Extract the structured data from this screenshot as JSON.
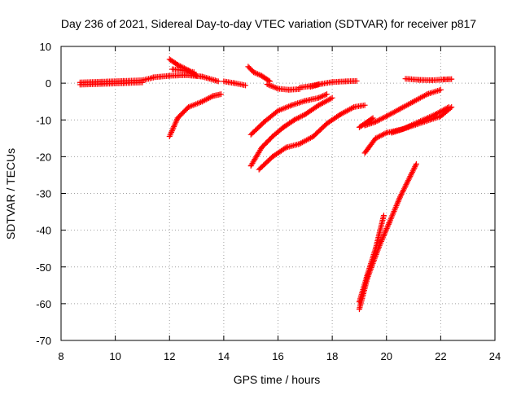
{
  "chart_data": {
    "type": "scatter",
    "title": "Day 236 of 2021, Sidereal Day-to-day VTEC variation (SDTVAR) for receiver p817",
    "xlabel": "GPS time / hours",
    "ylabel": "SDTVAR / TECUs",
    "xlim": [
      8,
      24
    ],
    "ylim": [
      -70,
      10
    ],
    "xticks": [
      8,
      10,
      12,
      14,
      16,
      18,
      20,
      22,
      24
    ],
    "yticks": [
      10,
      0,
      -10,
      -20,
      -30,
      -40,
      -50,
      -60,
      -70
    ],
    "xtick_labels": [
      "8",
      "10",
      "12",
      "14",
      "16",
      "18",
      "20",
      "22",
      "24"
    ],
    "ytick_labels": [
      "10",
      "0",
      "-10",
      "-20",
      "-30",
      "-40",
      "-50",
      "-60",
      "-70"
    ],
    "grid": true,
    "marker": "+",
    "color": "#ff0000",
    "tracks": [
      {
        "x": [
          8.7,
          9.5,
          10.3,
          11.0,
          11.4
        ],
        "y": [
          0.2,
          0.4,
          0.6,
          0.8,
          1.5
        ]
      },
      {
        "x": [
          8.7,
          9.5,
          10.3,
          11.0
        ],
        "y": [
          -0.4,
          -0.2,
          0.0,
          0.2
        ]
      },
      {
        "x": [
          11.4,
          12.0,
          12.6,
          13.2,
          13.8
        ],
        "y": [
          1.6,
          2.0,
          2.2,
          1.8,
          0.5
        ]
      },
      {
        "x": [
          12.0,
          12.3,
          12.7,
          13.0
        ],
        "y": [
          6.5,
          5.0,
          3.5,
          2.0
        ]
      },
      {
        "x": [
          12.1,
          12.5,
          12.9
        ],
        "y": [
          3.8,
          3.5,
          3.0
        ]
      },
      {
        "x": [
          12.0,
          12.3,
          12.7,
          13.2,
          13.6,
          13.9
        ],
        "y": [
          -14.5,
          -9.5,
          -6.5,
          -5.0,
          -3.5,
          -3.0
        ]
      },
      {
        "x": [
          14.0,
          14.4,
          14.8
        ],
        "y": [
          0.5,
          0.0,
          -0.6
        ]
      },
      {
        "x": [
          14.9,
          15.1,
          15.4,
          15.7
        ],
        "y": [
          4.5,
          3.0,
          2.0,
          0.5
        ]
      },
      {
        "x": [
          15.6,
          16.0,
          16.4,
          16.8
        ],
        "y": [
          -0.3,
          -1.5,
          -1.8,
          -1.6
        ]
      },
      {
        "x": [
          16.8,
          17.2,
          17.5
        ],
        "y": [
          -1.2,
          -0.8,
          -0.3
        ]
      },
      {
        "x": [
          17.2,
          17.6,
          18.0,
          18.5,
          18.9
        ],
        "y": [
          -1.0,
          -0.2,
          0.3,
          0.5,
          0.6
        ]
      },
      {
        "x": [
          15.0,
          15.5,
          16.0,
          16.5,
          17.0,
          17.5,
          17.8
        ],
        "y": [
          -14.0,
          -10.5,
          -7.5,
          -6.0,
          -4.8,
          -4.0,
          -3.0
        ]
      },
      {
        "x": [
          15.0,
          15.4,
          15.8,
          16.2,
          16.6,
          17.0,
          17.5,
          18.0
        ],
        "y": [
          -22.5,
          -17.5,
          -14.5,
          -12.0,
          -10.0,
          -8.5,
          -6.0,
          -4.0
        ]
      },
      {
        "x": [
          15.3,
          15.8,
          16.3,
          16.8,
          17.3,
          17.8,
          18.3,
          18.8,
          19.2
        ],
        "y": [
          -23.5,
          -20.0,
          -17.5,
          -16.5,
          -14.5,
          -11.0,
          -8.5,
          -6.5,
          -6.0
        ]
      },
      {
        "x": [
          19.0,
          19.3,
          19.5
        ],
        "y": [
          -12.0,
          -10.5,
          -9.5
        ]
      },
      {
        "x": [
          19.2,
          19.6,
          20.0,
          20.5,
          21.0,
          21.5,
          22.0
        ],
        "y": [
          -11.5,
          -10.5,
          -9.0,
          -7.0,
          -5.0,
          -3.0,
          -1.8
        ]
      },
      {
        "x": [
          19.2,
          19.6,
          20.0,
          20.6,
          21.2,
          21.8,
          22.3
        ],
        "y": [
          -19.0,
          -15.0,
          -13.5,
          -12.5,
          -10.5,
          -8.5,
          -6.5
        ]
      },
      {
        "x": [
          20.2,
          20.8,
          21.4,
          22.0,
          22.4
        ],
        "y": [
          -13.5,
          -12.0,
          -10.5,
          -9.0,
          -6.5
        ]
      },
      {
        "x": [
          20.7,
          21.2,
          21.7,
          22.1,
          22.4
        ],
        "y": [
          1.2,
          0.9,
          0.8,
          1.0,
          1.1
        ]
      },
      {
        "x": [
          19.0,
          19.3,
          19.7,
          20.1,
          20.5,
          20.9,
          21.1
        ],
        "y": [
          -61.5,
          -53.0,
          -45.0,
          -38.0,
          -31.0,
          -25.0,
          -22.0
        ]
      },
      {
        "x": [
          19.0,
          19.3,
          19.6,
          19.9
        ],
        "y": [
          -59.5,
          -52.0,
          -45.0,
          -36.0
        ]
      }
    ]
  }
}
